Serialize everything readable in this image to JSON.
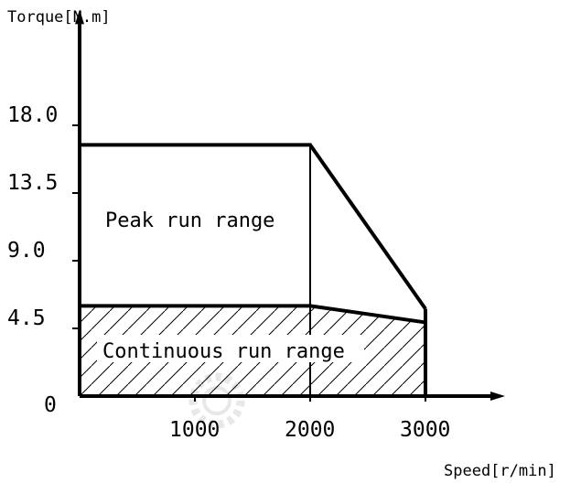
{
  "chart_data": {
    "type": "area",
    "xlabel": "Speed[r/min]",
    "ylabel": "Torque[N.m]",
    "xlim": [
      0,
      3500
    ],
    "ylim": [
      0,
      24
    ],
    "x_ticks": [
      {
        "value": 1000,
        "label": "1000"
      },
      {
        "value": 2000,
        "label": "2000"
      },
      {
        "value": 3000,
        "label": "3000"
      }
    ],
    "y_ticks": [
      {
        "value": 0,
        "label": "0"
      },
      {
        "value": 4.5,
        "label": "4.5"
      },
      {
        "value": 9.0,
        "label": "9.0"
      },
      {
        "value": 13.5,
        "label": "13.5"
      },
      {
        "value": 18.0,
        "label": "18.0"
      }
    ],
    "series": [
      {
        "name": "Peak run range",
        "x": [
          0,
          2000,
          3000
        ],
        "y": [
          16.7,
          16.7,
          5.8
        ]
      },
      {
        "name": "Continuous run range",
        "x": [
          0,
          2000,
          3000
        ],
        "y": [
          6.0,
          6.0,
          4.9
        ]
      }
    ],
    "annotations": [
      "Peak run range",
      "Continuous run range"
    ],
    "grid": false,
    "legend": "none"
  }
}
